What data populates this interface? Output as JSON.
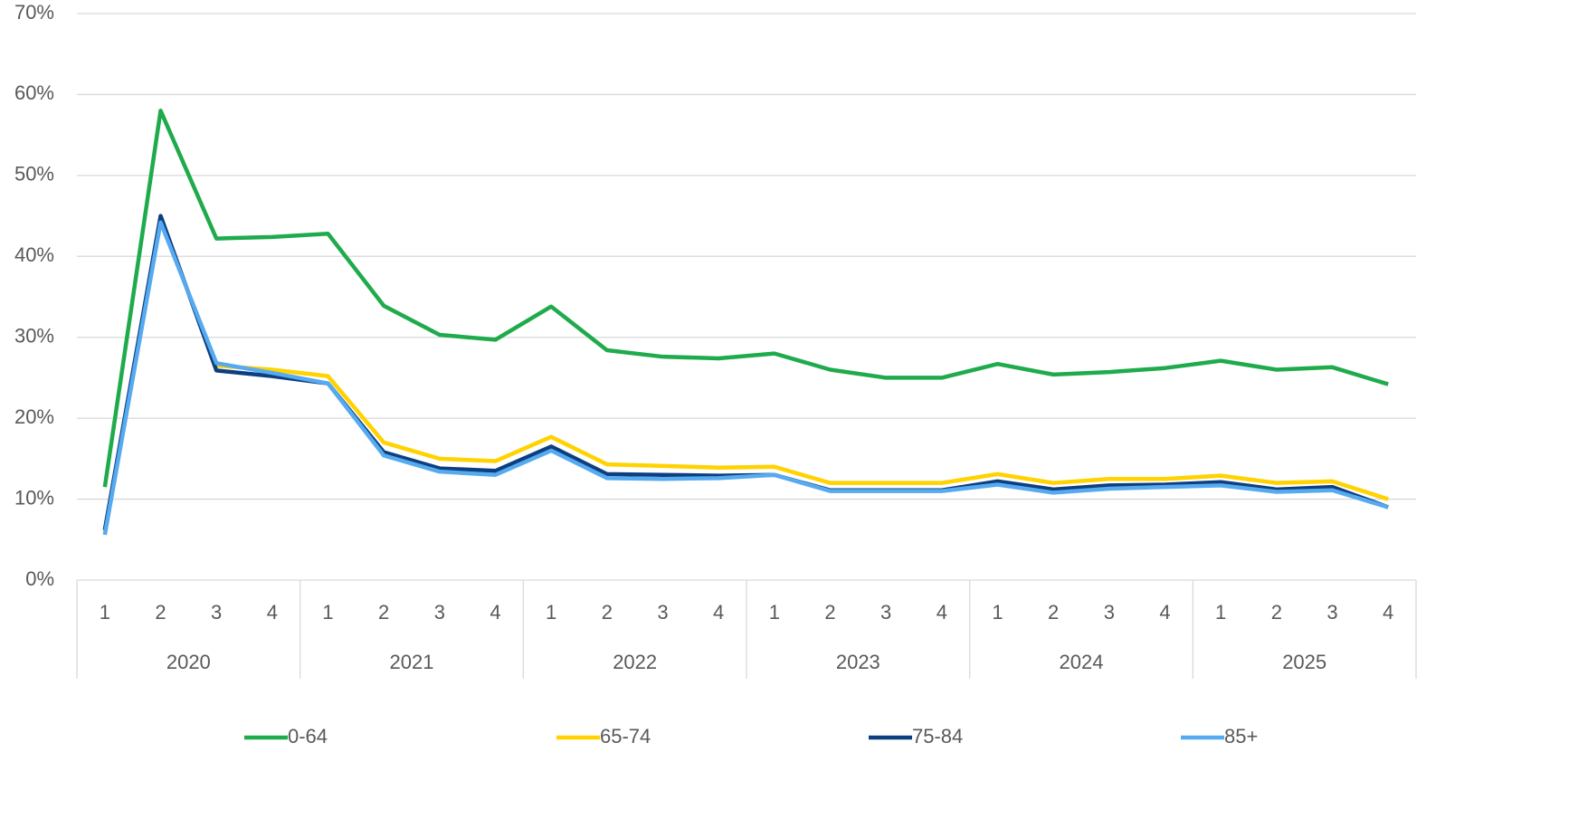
{
  "chart_data": {
    "type": "line",
    "categories": [
      "1",
      "2",
      "3",
      "4",
      "1",
      "2",
      "3",
      "4",
      "1",
      "2",
      "3",
      "4",
      "1",
      "2",
      "3",
      "4",
      "1",
      "2",
      "3",
      "4",
      "1",
      "2",
      "3",
      "4"
    ],
    "groups": [
      "2020",
      "2021",
      "2022",
      "2023",
      "2024",
      "2025"
    ],
    "ylim": [
      0,
      70
    ],
    "yticks": [
      {
        "value": 0,
        "label": "0%"
      },
      {
        "value": 10,
        "label": "10%"
      },
      {
        "value": 20,
        "label": "20%"
      },
      {
        "value": 30,
        "label": "30%"
      },
      {
        "value": 40,
        "label": "40%"
      },
      {
        "value": 50,
        "label": "50%"
      },
      {
        "value": 60,
        "label": "60%"
      },
      {
        "value": 70,
        "label": "70%"
      }
    ],
    "grid": true,
    "legend": "bottom",
    "series": [
      {
        "name": "0-64",
        "color": "#1fab4c",
        "values": [
          11.5,
          58,
          42.2,
          42.4,
          42.8,
          33.9,
          30.3,
          29.7,
          33.8,
          28.4,
          27.6,
          27.4,
          28,
          26,
          25,
          25,
          26.7,
          25.4,
          25.7,
          26.2,
          27.1,
          26,
          26.3,
          24.2
        ]
      },
      {
        "name": "65-74",
        "color": "#ffd200",
        "values": [
          6,
          44.5,
          26.5,
          26,
          25.2,
          17,
          15,
          14.7,
          17.7,
          14.3,
          14.1,
          13.9,
          14,
          12,
          12,
          12,
          13.1,
          12,
          12.5,
          12.5,
          12.9,
          12,
          12.2,
          10
        ]
      },
      {
        "name": "75-84",
        "color": "#0d3f80",
        "values": [
          6.2,
          45,
          25.9,
          25.2,
          24.3,
          15.8,
          13.8,
          13.5,
          16.5,
          13.1,
          13,
          12.9,
          13,
          11.1,
          11.1,
          11.1,
          12.2,
          11.2,
          11.7,
          11.8,
          12.1,
          11.2,
          11.5,
          9
        ]
      },
      {
        "name": "85+",
        "color": "#55aaf0",
        "values": [
          5.6,
          44.2,
          26.8,
          25.6,
          24.3,
          15.4,
          13.4,
          13,
          16,
          12.6,
          12.5,
          12.6,
          13,
          11,
          11,
          11,
          11.8,
          10.8,
          11.3,
          11.5,
          11.7,
          10.9,
          11.1,
          9
        ]
      }
    ]
  }
}
